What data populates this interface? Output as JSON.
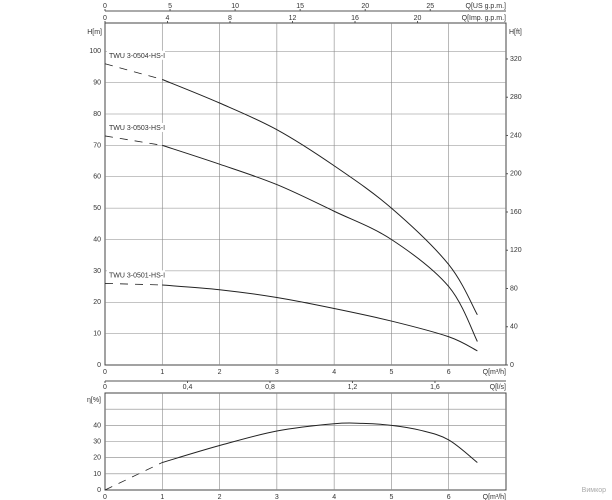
{
  "chart_data": [
    {
      "type": "line",
      "ylabel": "H[m]",
      "ylabel_right": "H[ft]",
      "xlabel": "Q[m³/h]",
      "xlim": [
        0,
        7
      ],
      "ylim": [
        0,
        109
      ],
      "x_ticks": [
        0,
        1,
        2,
        3,
        4,
        5,
        6
      ],
      "y_ticks": [
        10,
        20,
        30,
        40,
        50,
        60,
        70,
        80,
        90,
        100
      ],
      "y_ticks_right": [
        0,
        40,
        80,
        120,
        160,
        200,
        240,
        280,
        320
      ],
      "top_axis_us": {
        "label": "Q[US g.p.m.]",
        "ticks": [
          0,
          5,
          10,
          15,
          20,
          25
        ]
      },
      "top_axis_imp": {
        "label": "Q[Imp. g.p.m.]",
        "ticks": [
          0,
          4,
          8,
          12,
          16,
          20
        ]
      },
      "grid": true,
      "series": [
        {
          "name": "TWU 3-0504-HS-I",
          "dashed": [
            [
              0,
              96
            ],
            [
              1,
              91
            ]
          ],
          "x": [
            1,
            2,
            3,
            4,
            5,
            6,
            6.5
          ],
          "y": [
            91,
            83.5,
            75,
            63.5,
            50,
            32,
            16
          ]
        },
        {
          "name": "TWU 3-0503-HS-I",
          "dashed": [
            [
              0,
              73
            ],
            [
              1,
              70
            ]
          ],
          "x": [
            1,
            2,
            3,
            4,
            5,
            6,
            6.5
          ],
          "y": [
            70,
            64,
            57.5,
            49,
            40,
            25,
            7.5
          ]
        },
        {
          "name": "TWU 3-0501-HS-I",
          "dashed": [
            [
              0,
              26
            ],
            [
              1,
              25.5
            ]
          ],
          "x": [
            1,
            2,
            3,
            4,
            5,
            6,
            6.5
          ],
          "y": [
            25.5,
            24,
            21.5,
            18,
            14,
            9,
            4.5
          ]
        }
      ]
    },
    {
      "type": "line",
      "ylabel": "η[%]",
      "xlabel": "Q[m³/h]",
      "xlim": [
        0,
        7
      ],
      "ylim": [
        0,
        60
      ],
      "x_ticks": [
        0,
        1,
        2,
        3,
        4,
        5,
        6
      ],
      "y_ticks": [
        0,
        10,
        20,
        30,
        40
      ],
      "top_axis_ls": {
        "label": "Q[l/s]",
        "ticks": [
          "0",
          "0,4",
          "0,8",
          "1,2",
          "1,6"
        ],
        "values": [
          0,
          0.4,
          0.8,
          1.2,
          1.6
        ]
      },
      "grid": true,
      "series": [
        {
          "dashed": [
            [
              0,
              0
            ],
            [
              1,
              17
            ]
          ],
          "x": [
            1,
            2,
            3,
            4,
            4.5,
            5,
            5.5,
            6,
            6.5
          ],
          "y": [
            17,
            27.5,
            36.5,
            41,
            41.2,
            40,
            37,
            31,
            17
          ]
        }
      ]
    }
  ],
  "watermark": "Вимкор"
}
